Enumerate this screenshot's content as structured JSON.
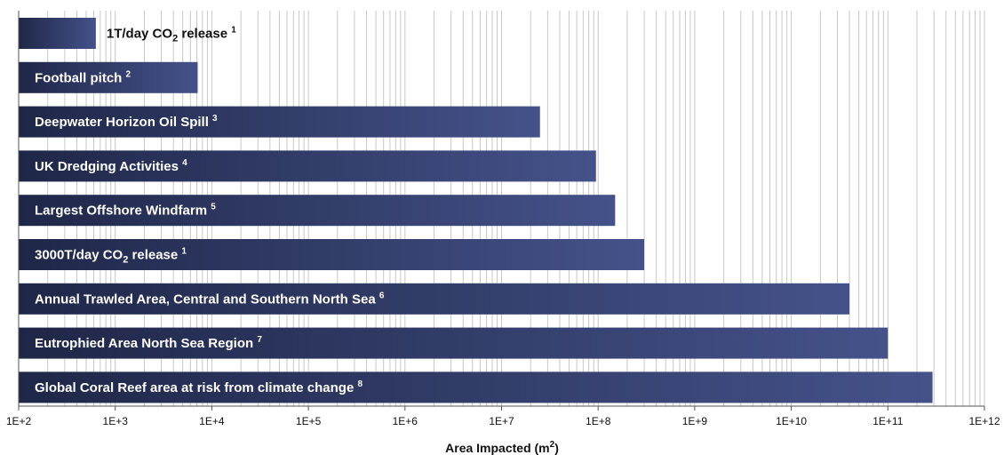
{
  "chart_data": {
    "type": "bar",
    "orientation": "horizontal",
    "x_scale": "log",
    "xlim": [
      100,
      1000000000000
    ],
    "grid": true,
    "xlabel_main": "Area Impacted (m",
    "xlabel_sup": "2",
    "xlabel_end": ")",
    "tick_labels": [
      "1E+2",
      "1E+3",
      "1E+4",
      "1E+5",
      "1E+6",
      "1E+7",
      "1E+8",
      "1E+9",
      "1E+10",
      "1E+11",
      "1E+12"
    ],
    "bar_color_dark": "#1f2748",
    "bar_color_light": "#45528a",
    "categories": [
      {
        "parts": [
          [
            "1T/day CO",
            "n"
          ],
          [
            "2",
            "sub"
          ],
          [
            " release ",
            "n"
          ],
          [
            "1",
            "sup"
          ]
        ],
        "value": 630,
        "label_outside": true
      },
      {
        "parts": [
          [
            "Football pitch ",
            "n"
          ],
          [
            "2",
            "sup"
          ]
        ],
        "value": 7140
      },
      {
        "parts": [
          [
            "Deepwater Horizon Oil Spill ",
            "n"
          ],
          [
            "3",
            "sup"
          ]
        ],
        "value": 25000000
      },
      {
        "parts": [
          [
            "UK Dredging Activities ",
            "n"
          ],
          [
            "4",
            "sup"
          ]
        ],
        "value": 95000000
      },
      {
        "parts": [
          [
            "Largest Offshore Windfarm ",
            "n"
          ],
          [
            "5",
            "sup"
          ]
        ],
        "value": 150000000
      },
      {
        "parts": [
          [
            "3000T/day CO",
            "n"
          ],
          [
            "2",
            "sub"
          ],
          [
            " release ",
            "n"
          ],
          [
            "1",
            "sup"
          ]
        ],
        "value": 300000000
      },
      {
        "parts": [
          [
            "Annual Trawled Area, Central and Southern North Sea ",
            "n"
          ],
          [
            "6",
            "sup"
          ]
        ],
        "value": 40000000000
      },
      {
        "parts": [
          [
            "Eutrophied Area North Sea Region ",
            "n"
          ],
          [
            "7",
            "sup"
          ]
        ],
        "value": 100000000000
      },
      {
        "parts": [
          [
            "Global Coral Reef area at risk from climate change ",
            "n"
          ],
          [
            "8",
            "sup"
          ]
        ],
        "value": 290000000000
      }
    ]
  }
}
